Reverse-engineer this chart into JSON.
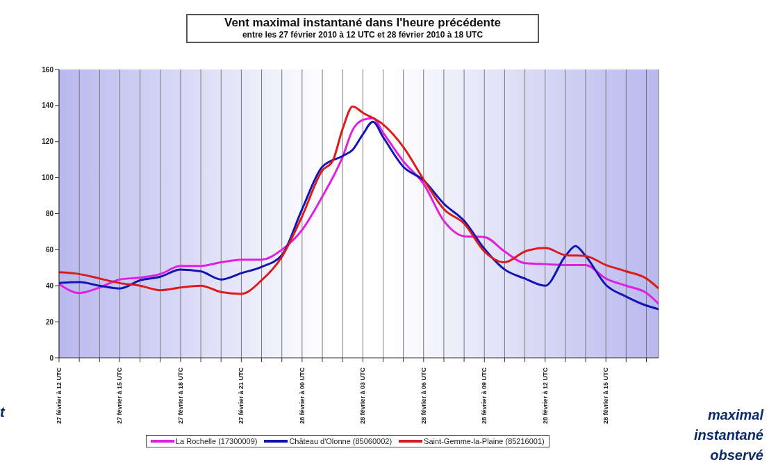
{
  "chart_data": {
    "type": "line",
    "title": "Vent maximal instantané dans l'heure précédente",
    "subtitle": "entre les 27 février 2010 à 12 UTC et 28 février 2010 à 18 UTC",
    "xlim": [
      "2010-02-27T12:00",
      "2010-02-28T17:36"
    ],
    "ylim": [
      0,
      160
    ],
    "yticks": [
      0,
      20,
      40,
      60,
      80,
      100,
      120,
      140,
      160
    ],
    "xticks": [
      {
        "value": "2010-02-27T12:00",
        "label": "27 février à 12 UTC"
      },
      {
        "value": "2010-02-27T13:00",
        "label": null
      },
      {
        "value": "2010-02-27T14:00",
        "label": null
      },
      {
        "value": "2010-02-27T15:00",
        "label": "27 février à 15 UTC"
      },
      {
        "value": "2010-02-27T16:00",
        "label": null
      },
      {
        "value": "2010-02-27T17:00",
        "label": null
      },
      {
        "value": "2010-02-27T18:00",
        "label": "27 février à 18 UTC"
      },
      {
        "value": "2010-02-27T19:00",
        "label": null
      },
      {
        "value": "2010-02-27T20:00",
        "label": null
      },
      {
        "value": "2010-02-27T21:00",
        "label": "27 février à 21 UTC"
      },
      {
        "value": "2010-02-27T22:00",
        "label": null
      },
      {
        "value": "2010-02-27T23:00",
        "label": null
      },
      {
        "value": "2010-02-28T00:00",
        "label": "28 février à 00 UTC"
      },
      {
        "value": "2010-02-28T01:00",
        "label": null
      },
      {
        "value": "2010-02-28T02:00",
        "label": null
      },
      {
        "value": "2010-02-28T03:00",
        "label": "28 février à 03 UTC"
      },
      {
        "value": "2010-02-28T04:00",
        "label": null
      },
      {
        "value": "2010-02-28T05:00",
        "label": null
      },
      {
        "value": "2010-02-28T06:00",
        "label": "28 février à 06 UTC"
      },
      {
        "value": "2010-02-28T07:00",
        "label": null
      },
      {
        "value": "2010-02-28T08:00",
        "label": null
      },
      {
        "value": "2010-02-28T09:00",
        "label": "28 février à 09 UTC"
      },
      {
        "value": "2010-02-28T10:00",
        "label": null
      },
      {
        "value": "2010-02-28T11:00",
        "label": null
      },
      {
        "value": "2010-02-28T12:00",
        "label": "28 février à 12 UTC"
      },
      {
        "value": "2010-02-28T13:00",
        "label": null
      },
      {
        "value": "2010-02-28T14:00",
        "label": null
      },
      {
        "value": "2010-02-28T15:00",
        "label": "28 février à 15 UTC"
      },
      {
        "value": "2010-02-28T16:00",
        "label": null
      },
      {
        "value": "2010-02-28T17:00",
        "label": null
      }
    ],
    "grid": "x",
    "legend": "bottom",
    "marker": "none",
    "line_style": "solid",
    "series": [
      {
        "name": "La Rochelle (17300009)",
        "color": "#e020e0",
        "x": [
          "2010-02-27T12:00",
          "2010-02-27T13:00",
          "2010-02-27T14:00",
          "2010-02-27T15:00",
          "2010-02-27T16:00",
          "2010-02-27T17:00",
          "2010-02-27T18:00",
          "2010-02-27T19:00",
          "2010-02-27T20:00",
          "2010-02-27T21:00",
          "2010-02-27T22:00",
          "2010-02-27T23:00",
          "2010-02-28T00:00",
          "2010-02-28T01:00",
          "2010-02-28T02:00",
          "2010-02-28T02:30",
          "2010-02-28T03:00",
          "2010-02-28T03:30",
          "2010-02-28T04:00",
          "2010-02-28T05:00",
          "2010-02-28T06:00",
          "2010-02-28T07:00",
          "2010-02-28T08:00",
          "2010-02-28T09:00",
          "2010-02-28T10:00",
          "2010-02-28T11:00",
          "2010-02-28T12:00",
          "2010-02-28T13:00",
          "2010-02-28T14:00",
          "2010-02-28T15:00",
          "2010-02-28T16:00",
          "2010-02-28T17:00",
          "2010-02-28T17:36"
        ],
        "values": [
          41,
          36,
          39,
          43.5,
          44.5,
          46.5,
          51,
          51,
          53,
          54.5,
          54.5,
          60,
          71,
          89.5,
          111.5,
          126.5,
          132,
          133,
          125,
          109,
          96.5,
          76,
          67.5,
          67,
          59,
          52.5,
          52,
          51.5,
          51.5,
          44,
          40,
          36,
          30
        ]
      },
      {
        "name": "Château d'Olonne (85060002)",
        "color": "#1414b4",
        "x": [
          "2010-02-27T12:00",
          "2010-02-27T13:00",
          "2010-02-27T14:00",
          "2010-02-27T15:00",
          "2010-02-27T16:00",
          "2010-02-27T17:00",
          "2010-02-27T18:00",
          "2010-02-27T19:00",
          "2010-02-27T20:00",
          "2010-02-27T21:00",
          "2010-02-27T22:00",
          "2010-02-27T23:00",
          "2010-02-28T00:00",
          "2010-02-28T01:00",
          "2010-02-28T02:00",
          "2010-02-28T02:30",
          "2010-02-28T03:00",
          "2010-02-28T03:30",
          "2010-02-28T04:00",
          "2010-02-28T05:00",
          "2010-02-28T06:00",
          "2010-02-28T07:00",
          "2010-02-28T08:00",
          "2010-02-28T09:00",
          "2010-02-28T10:00",
          "2010-02-28T11:00",
          "2010-02-28T12:00",
          "2010-02-28T13:00",
          "2010-02-28T13:30",
          "2010-02-28T14:00",
          "2010-02-28T15:00",
          "2010-02-28T16:00",
          "2010-02-28T17:00",
          "2010-02-28T17:36"
        ],
        "values": [
          41.5,
          42,
          40,
          38.5,
          43,
          45,
          49,
          48,
          43.5,
          47,
          50.5,
          57,
          82.5,
          106,
          112,
          115.5,
          124,
          131,
          122.5,
          106,
          98.5,
          85.5,
          76,
          60.5,
          49,
          44,
          40,
          56.5,
          62,
          56.5,
          40.5,
          34,
          29,
          27
        ]
      },
      {
        "name": "Saint-Gemme-la-Plaine (85216001)",
        "color": "#dc1c1c",
        "x": [
          "2010-02-27T12:00",
          "2010-02-27T13:00",
          "2010-02-27T14:00",
          "2010-02-27T15:00",
          "2010-02-27T16:00",
          "2010-02-27T17:00",
          "2010-02-27T18:00",
          "2010-02-27T19:00",
          "2010-02-27T20:00",
          "2010-02-27T21:00",
          "2010-02-27T22:00",
          "2010-02-27T23:00",
          "2010-02-28T00:00",
          "2010-02-28T01:00",
          "2010-02-28T01:30",
          "2010-02-28T02:00",
          "2010-02-28T02:30",
          "2010-02-28T03:00",
          "2010-02-28T04:00",
          "2010-02-28T05:00",
          "2010-02-28T06:00",
          "2010-02-28T07:00",
          "2010-02-28T08:00",
          "2010-02-28T09:00",
          "2010-02-28T10:00",
          "2010-02-28T11:00",
          "2010-02-28T12:00",
          "2010-02-28T13:00",
          "2010-02-28T14:00",
          "2010-02-28T15:00",
          "2010-02-28T16:00",
          "2010-02-28T17:00",
          "2010-02-28T17:36"
        ],
        "values": [
          47.5,
          46.5,
          44,
          41.5,
          40,
          37.5,
          39,
          40,
          36.5,
          35.5,
          43,
          56,
          78.5,
          104,
          109,
          127,
          139.5,
          136,
          129.5,
          117,
          99,
          82.5,
          74.5,
          59,
          53,
          59,
          61,
          57,
          56.5,
          51.5,
          48,
          44,
          38.5
        ]
      }
    ],
    "annotations": [
      "t",
      "maximal instantané observé"
    ]
  }
}
